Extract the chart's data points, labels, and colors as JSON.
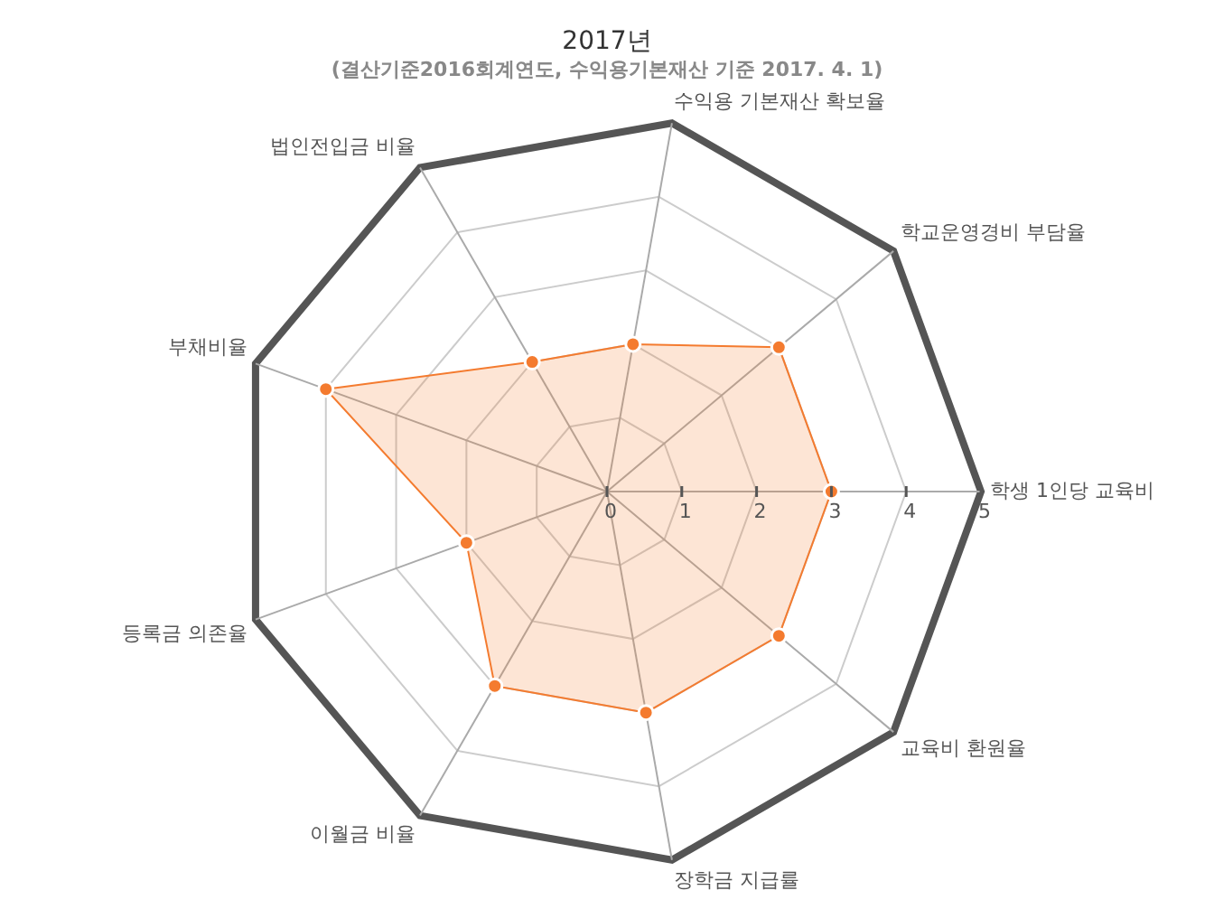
{
  "chart_data": {
    "type": "radar",
    "title": "2017년",
    "subtitle": "(결산기준2016회계연도, 수익용기본재산 기준 2017. 4. 1)",
    "categories": [
      "수익용 기본재산 확보율",
      "학교운영경비 부담율",
      "학생 1인당 교육비",
      "교육비 환원율",
      "장학금 지급률",
      "이월금 비율",
      "등록금 의존율",
      "부채비율",
      "법인전입금 비율"
    ],
    "series": [
      {
        "color": "#f47b2f",
        "values": [
          2,
          3,
          3,
          3,
          3,
          3,
          2,
          4,
          2
        ]
      }
    ],
    "ylim": [
      0,
      5
    ],
    "yticks": [
      0,
      1,
      2,
      3,
      4,
      5
    ],
    "grid": true,
    "legend": false,
    "marker": "circle"
  }
}
